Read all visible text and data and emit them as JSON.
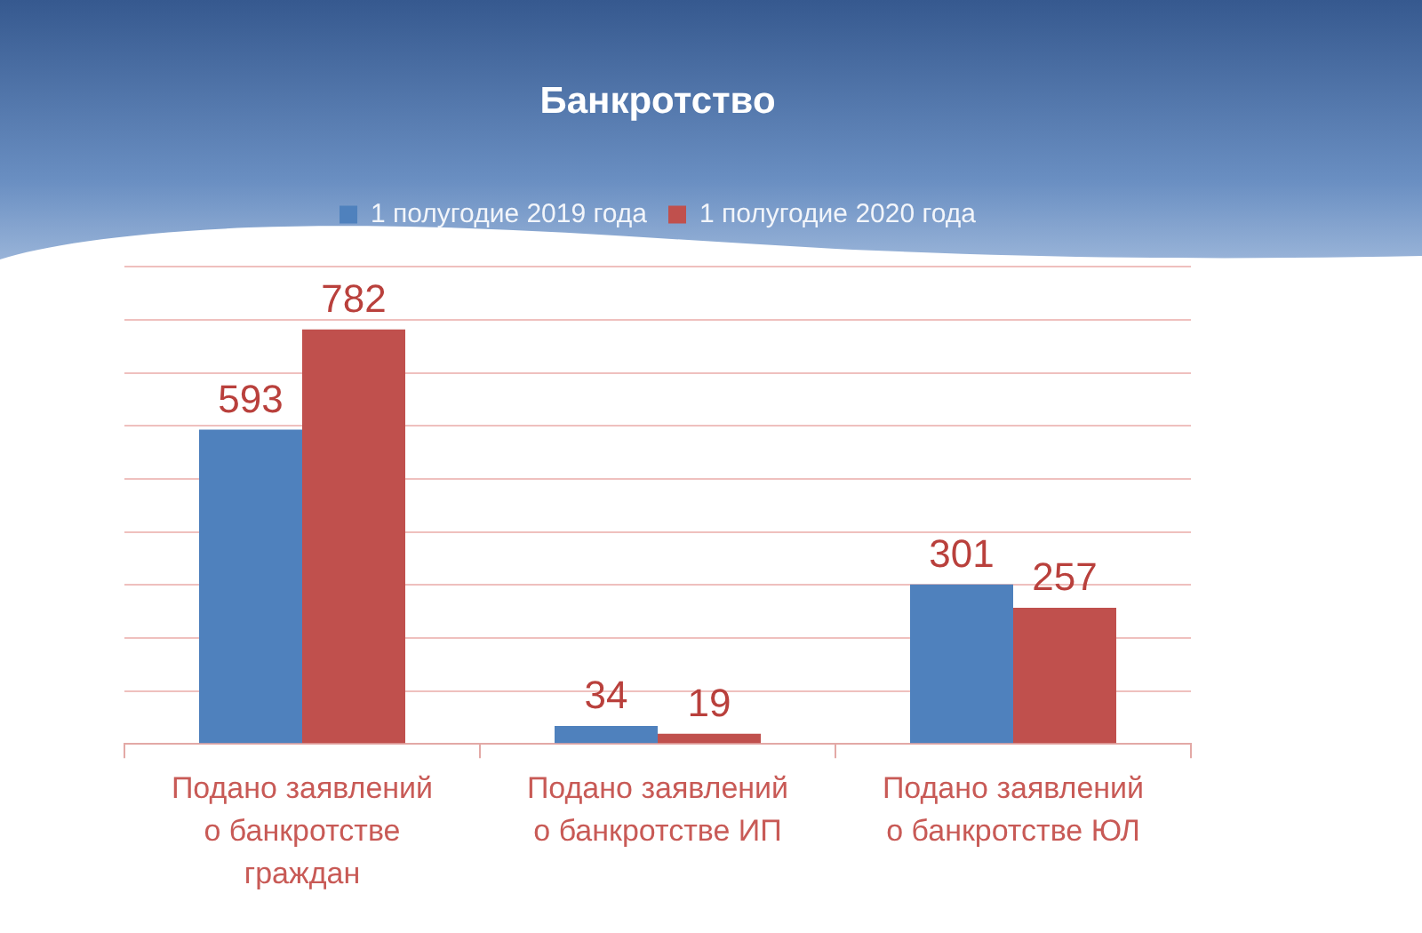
{
  "chart_data": {
    "type": "bar",
    "title": "Банкротство",
    "categories": [
      "Подано заявлений о банкротстве граждан",
      "Подано заявлений о банкротстве ИП",
      "Подано заявлений о банкротстве ЮЛ"
    ],
    "series": [
      {
        "name": "1 полугодие 2019 года",
        "color": "#4f81bd",
        "values": [
          593,
          34,
          301
        ]
      },
      {
        "name": "1 полугодие 2020 года",
        "color": "#c0504d",
        "values": [
          782,
          19,
          257
        ]
      }
    ],
    "ylim": [
      0,
      900
    ],
    "yticks": [
      {
        "value": 0,
        "label": null
      },
      {
        "value": 100,
        "label": null
      },
      {
        "value": 200,
        "label": null
      },
      {
        "value": 300,
        "label": null
      },
      {
        "value": 400,
        "label": null
      },
      {
        "value": 500,
        "label": null
      },
      {
        "value": 600,
        "label": null
      },
      {
        "value": 700,
        "label": null
      },
      {
        "value": 800,
        "label": null
      },
      {
        "value": 900,
        "label": null
      }
    ],
    "grid": "y",
    "legend": "top",
    "tick_labels": "x",
    "data_labels": true
  }
}
